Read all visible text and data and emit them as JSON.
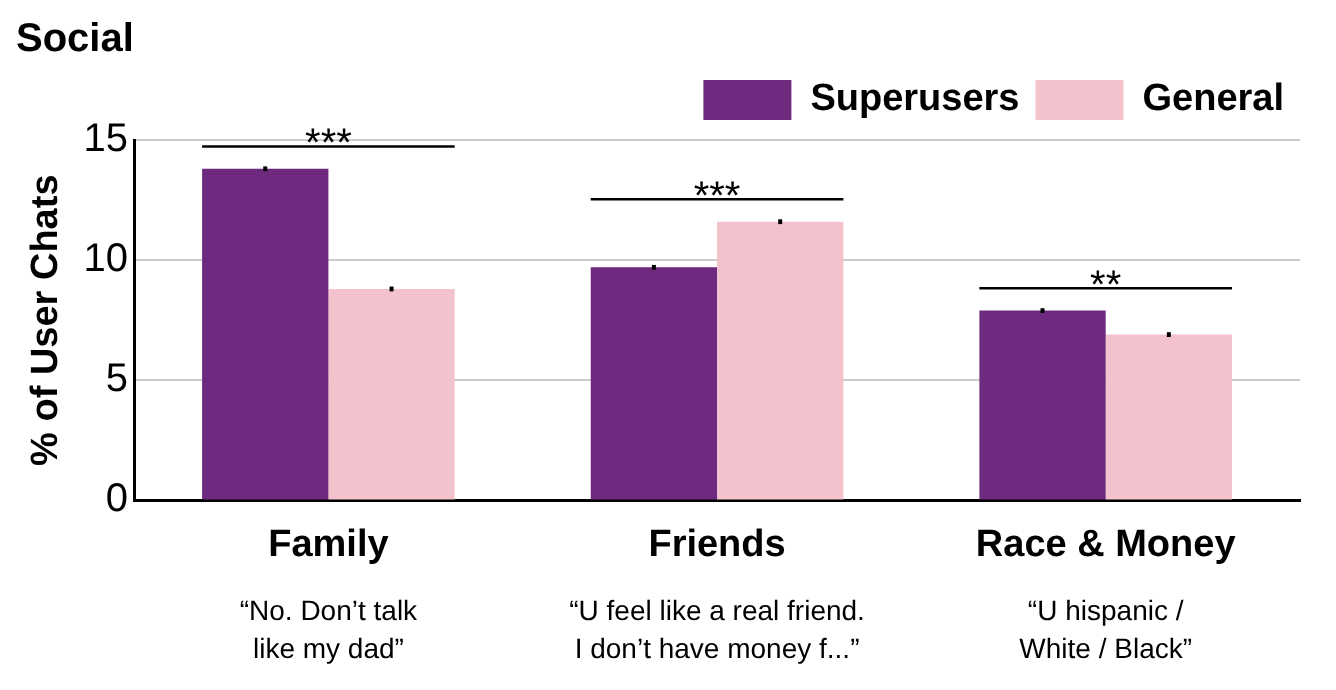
{
  "chart_data": {
    "type": "bar",
    "title": "Social",
    "ylabel": "% of User Chats",
    "categories": [
      "Family",
      "Friends",
      "Race & Money"
    ],
    "series": [
      {
        "name": "Superusers",
        "color": "#6e2a7e",
        "values": [
          13.8,
          9.7,
          7.9
        ],
        "errors": [
          0.1,
          0.1,
          0.1
        ]
      },
      {
        "name": "General",
        "color": "#f4c2cc",
        "values": [
          8.8,
          11.6,
          6.9
        ],
        "errors": [
          0.1,
          0.1,
          0.1
        ]
      }
    ],
    "ylim": [
      0,
      15
    ],
    "yticks": [
      0,
      5,
      10,
      15
    ],
    "grid": "y",
    "legend": "top right",
    "annotations": [
      "***",
      "***",
      "**",
      "“No. Don’t talk\nlike my dad”",
      "“U feel like a real friend.\nI don’t have money f...”",
      "“U hispanic /\nWhite / Black”"
    ]
  }
}
